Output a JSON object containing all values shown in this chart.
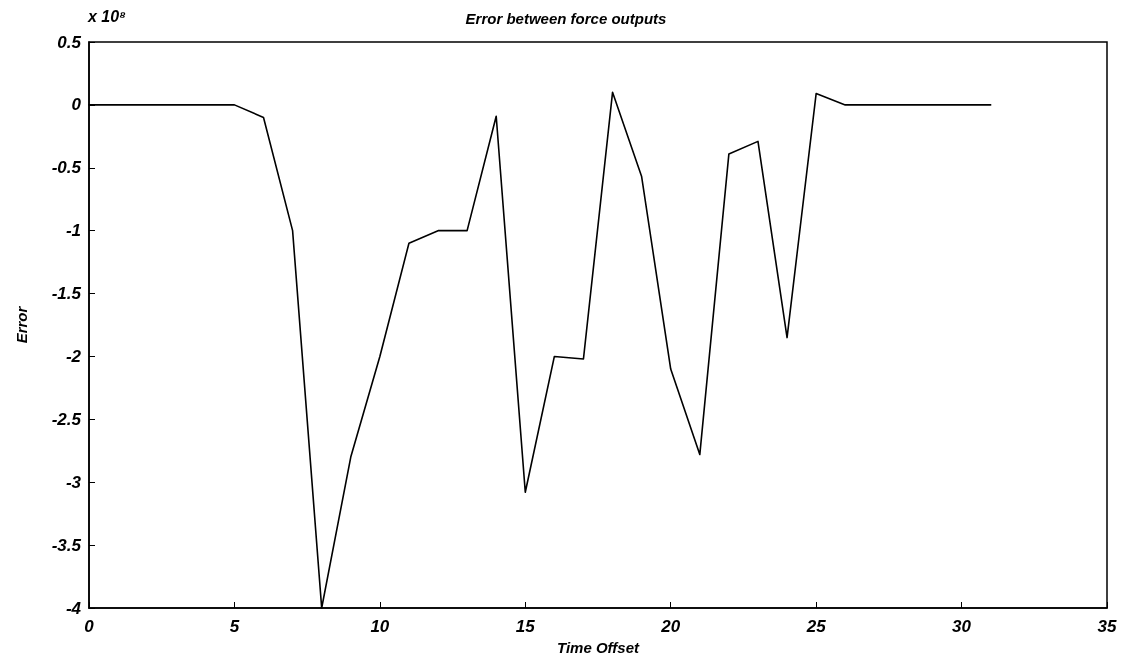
{
  "chart_data": {
    "type": "line",
    "title": "Error between force outputs",
    "xlabel": "Time Offset",
    "ylabel": "Error",
    "annotations": [
      "x 10⁸"
    ],
    "x": [
      0,
      1,
      2,
      3,
      4,
      5,
      6,
      7,
      8,
      9,
      10,
      11,
      12,
      13,
      14,
      15,
      16,
      17,
      18,
      19,
      20,
      21,
      22,
      23,
      24,
      25,
      26,
      27,
      28,
      29,
      30,
      31
    ],
    "series": [
      {
        "color": "#000000",
        "values": [
          0,
          0,
          0,
          0,
          0,
          0,
          -0.1,
          -1.0,
          -4.0,
          -2.8,
          -2.0,
          -1.1,
          -1.0,
          -1.0,
          -0.09,
          -3.08,
          -2.0,
          -2.02,
          0.1,
          -0.57,
          -2.1,
          -2.78,
          -0.39,
          -0.29,
          -1.85,
          0.09,
          0,
          0,
          0,
          0,
          0,
          0
        ]
      }
    ],
    "xlim": [
      0,
      35
    ],
    "xticks": [
      0,
      5,
      10,
      15,
      20,
      25,
      30,
      35
    ],
    "ylim": [
      -4,
      0.5
    ],
    "yticks": [
      -4,
      -3.5,
      -3,
      -2.5,
      -2,
      -1.5,
      -1,
      -0.5,
      0,
      0.5
    ],
    "grid": false,
    "marker": "none",
    "line_style": "solid"
  }
}
